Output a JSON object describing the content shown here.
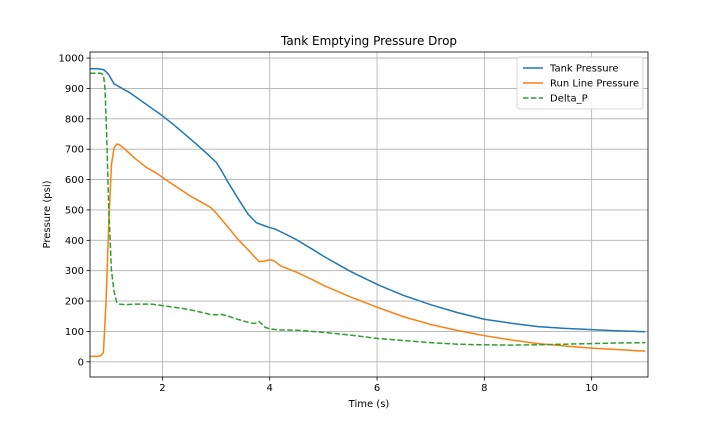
{
  "chart_data": {
    "type": "line",
    "title": "Tank Emptying Pressure Drop",
    "xlabel": "Time (s)",
    "ylabel": "Pressure (psi)",
    "xlim": [
      0.65,
      11.05
    ],
    "ylim": [
      -50,
      1020
    ],
    "xticks": [
      2,
      4,
      6,
      8,
      10
    ],
    "yticks": [
      0,
      100,
      200,
      300,
      400,
      500,
      600,
      700,
      800,
      900,
      1000
    ],
    "grid": true,
    "legend_position": "top-right",
    "series": [
      {
        "name": "Tank Pressure",
        "color": "#1f77b4",
        "style": "solid",
        "x": [
          0.65,
          0.8,
          0.9,
          0.95,
          1.0,
          1.05,
          1.1,
          1.2,
          1.4,
          1.6,
          1.8,
          2.0,
          2.2,
          2.4,
          2.6,
          2.8,
          3.0,
          3.1,
          3.2,
          3.4,
          3.6,
          3.75,
          3.9,
          4.0,
          4.1,
          4.3,
          4.5,
          4.8,
          5.0,
          5.5,
          6.0,
          6.5,
          7.0,
          7.5,
          8.0,
          8.5,
          9.0,
          9.5,
          10.0,
          10.5,
          11.0
        ],
        "y": [
          965,
          965,
          962,
          955,
          945,
          930,
          915,
          905,
          885,
          860,
          835,
          810,
          782,
          752,
          722,
          690,
          657,
          630,
          598,
          540,
          485,
          458,
          448,
          442,
          437,
          420,
          402,
          370,
          348,
          298,
          255,
          218,
          188,
          162,
          140,
          127,
          116,
          110,
          106,
          102,
          99
        ]
      },
      {
        "name": "Run Line Pressure",
        "color": "#ff7f0e",
        "style": "solid",
        "x": [
          0.65,
          0.78,
          0.85,
          0.9,
          0.95,
          1.0,
          1.05,
          1.1,
          1.15,
          1.2,
          1.3,
          1.5,
          1.7,
          1.9,
          2.1,
          2.3,
          2.5,
          2.7,
          2.9,
          3.0,
          3.2,
          3.4,
          3.6,
          3.8,
          3.9,
          4.0,
          4.05,
          4.1,
          4.2,
          4.5,
          4.8,
          5.0,
          5.5,
          6.0,
          6.5,
          7.0,
          7.5,
          8.0,
          8.5,
          9.0,
          9.5,
          10.0,
          10.5,
          11.0
        ],
        "y": [
          18,
          18,
          20,
          30,
          200,
          460,
          650,
          705,
          717,
          715,
          700,
          668,
          640,
          620,
          595,
          572,
          548,
          528,
          508,
          490,
          448,
          405,
          368,
          330,
          332,
          336,
          334,
          330,
          316,
          295,
          270,
          252,
          214,
          180,
          148,
          123,
          103,
          86,
          72,
          60,
          52,
          45,
          40,
          35
        ]
      },
      {
        "name": "Delta_P",
        "color": "#2ca02c",
        "style": "dashed",
        "x": [
          0.65,
          0.85,
          0.9,
          0.93,
          0.96,
          1.0,
          1.05,
          1.1,
          1.15,
          1.2,
          1.3,
          1.5,
          1.8,
          2.0,
          2.2,
          2.4,
          2.6,
          2.8,
          2.9,
          3.0,
          3.1,
          3.2,
          3.4,
          3.6,
          3.7,
          3.75,
          3.8,
          3.85,
          3.9,
          4.0,
          4.2,
          4.5,
          5.0,
          5.5,
          6.0,
          6.5,
          7.0,
          7.5,
          8.0,
          8.5,
          9.0,
          9.5,
          10.0,
          10.5,
          11.0
        ],
        "y": [
          950,
          950,
          945,
          900,
          750,
          500,
          300,
          230,
          195,
          190,
          188,
          190,
          190,
          185,
          180,
          175,
          168,
          160,
          155,
          155,
          156,
          152,
          140,
          130,
          126,
          128,
          133,
          125,
          115,
          108,
          105,
          104,
          97,
          88,
          77,
          70,
          63,
          58,
          56,
          55,
          56,
          58,
          60,
          62,
          63
        ]
      }
    ]
  }
}
